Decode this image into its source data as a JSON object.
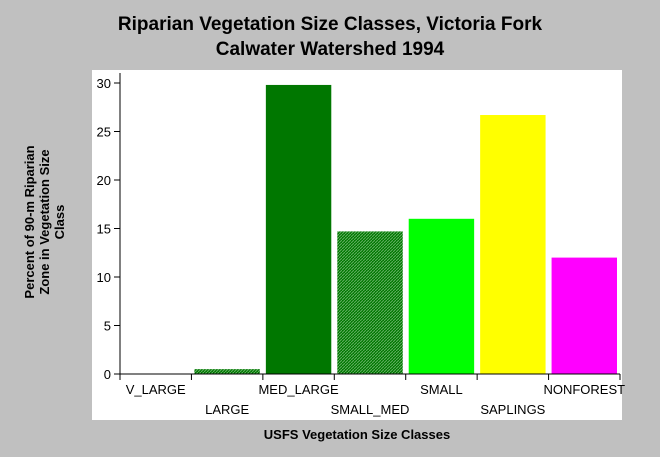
{
  "chart_data": {
    "type": "bar",
    "title_lines": [
      "Riparian Vegetation Size Classes, Victoria Fork",
      "Calwater Watershed 1994"
    ],
    "xlabel": "USFS Vegetation Size Classes",
    "ylabel_lines": [
      "Percent of 90-m Riparian",
      "Zone in Vegetation Size",
      "Class"
    ],
    "categories": [
      "V_LARGE",
      "LARGE",
      "MED_LARGE",
      "SMALL_MED",
      "SMALL",
      "SAPLINGS",
      "NONFOREST"
    ],
    "values": [
      0,
      0.5,
      29.8,
      14.7,
      16.0,
      26.7,
      12.0
    ],
    "colors": [
      "#007700",
      "#007700",
      "#007700",
      "#007700",
      "#00ff00",
      "#ffff00",
      "#ff00ff"
    ],
    "patterns": [
      "solid",
      "hatched",
      "solid",
      "hatched",
      "solid",
      "solid",
      "solid"
    ],
    "ylim": [
      0,
      30
    ],
    "yticks": [
      0,
      5,
      10,
      15,
      20,
      25,
      30
    ],
    "grid": false,
    "legend": "none"
  }
}
